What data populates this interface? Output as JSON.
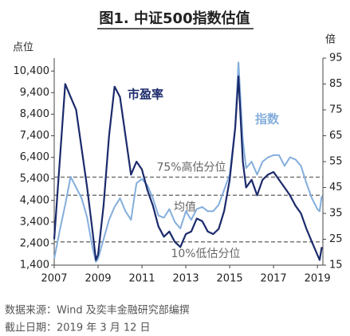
{
  "chart_data": {
    "type": "line",
    "title": "图1. 中证500指数估值",
    "ylabel": "点位",
    "y2label": "倍",
    "x": [
      2007.0,
      2007.25,
      2007.5,
      2007.75,
      2008.0,
      2008.25,
      2008.5,
      2008.75,
      2008.9,
      2009.0,
      2009.25,
      2009.5,
      2009.75,
      2010.0,
      2010.25,
      2010.5,
      2010.75,
      2011.0,
      2011.25,
      2011.5,
      2011.75,
      2012.0,
      2012.25,
      2012.5,
      2012.75,
      2013.0,
      2013.25,
      2013.5,
      2013.75,
      2014.0,
      2014.25,
      2014.5,
      2014.75,
      2015.0,
      2015.25,
      2015.4,
      2015.6,
      2015.75,
      2016.0,
      2016.25,
      2016.5,
      2016.75,
      2017.0,
      2017.25,
      2017.5,
      2017.75,
      2018.0,
      2018.25,
      2018.5,
      2018.75,
      2019.0,
      2019.1,
      2019.2
    ],
    "series": [
      {
        "name": "指数",
        "color": "#84aedc",
        "values": [
          1700,
          3000,
          4200,
          5500,
          5000,
          4500,
          3600,
          2200,
          1550,
          1700,
          2600,
          3500,
          4100,
          4500,
          3900,
          3500,
          5200,
          5400,
          5100,
          4500,
          3700,
          3600,
          4000,
          3400,
          3100,
          3900,
          3500,
          4000,
          4100,
          3900,
          3900,
          4200,
          4900,
          5600,
          7800,
          10800,
          7200,
          5900,
          6200,
          5600,
          6200,
          6400,
          6500,
          6500,
          6000,
          6400,
          6300,
          6000,
          5200,
          4500,
          4000,
          3900,
          4600
        ]
      },
      {
        "name": "市盈率",
        "color": "#1b2a6b",
        "axis": "y2",
        "values": [
          25,
          55,
          85,
          80,
          75,
          60,
          45,
          28,
          17,
          19,
          38,
          65,
          84,
          80,
          65,
          50,
          55,
          52,
          44,
          38,
          30,
          26,
          28,
          24,
          22,
          27,
          28,
          33,
          32,
          28,
          27,
          29,
          36,
          48,
          68,
          88,
          55,
          45,
          48,
          42,
          48,
          50,
          51,
          48,
          45,
          42,
          38,
          35,
          29,
          24,
          19,
          17,
          22
        ]
      }
    ],
    "reference_lines": [
      {
        "label": "75%高估分位",
        "value": 49,
        "axis": "y2"
      },
      {
        "label": "均值",
        "value": 42,
        "axis": "y2"
      },
      {
        "label": "10%低估分位",
        "value": 24,
        "axis": "y2"
      }
    ],
    "xlim": [
      2007,
      2019.25
    ],
    "xticks": [
      2007,
      2009,
      2011,
      2013,
      2015,
      2017,
      2019
    ],
    "ylim": [
      1400,
      11000
    ],
    "yticks": [
      {
        "value": 1400,
        "label": "1,400"
      },
      {
        "value": 2400,
        "label": "2,400"
      },
      {
        "value": 3400,
        "label": "3,400"
      },
      {
        "value": 4400,
        "label": "4,400"
      },
      {
        "value": 5400,
        "label": "5,400"
      },
      {
        "value": 6400,
        "label": "6,400"
      },
      {
        "value": 7400,
        "label": "7,400"
      },
      {
        "value": 8400,
        "label": "8,400"
      },
      {
        "value": 9400,
        "label": "9,400"
      },
      {
        "value": 10400,
        "label": "10,400"
      }
    ],
    "y2lim": [
      15,
      95
    ],
    "y2ticks": [
      15,
      25,
      35,
      45,
      55,
      65,
      75,
      85,
      95
    ],
    "source": "数据来源：Wind 及奕丰金融研究部编撰",
    "date_note": "截止日期：2019 年 3 月 12 日"
  }
}
